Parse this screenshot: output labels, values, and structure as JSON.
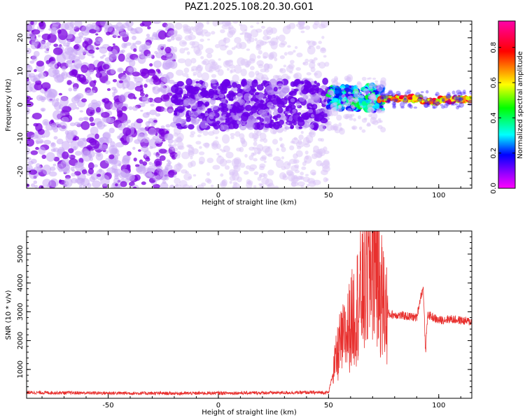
{
  "figure_title": "PAZ1.2025.108.20.30.G01",
  "colors": {
    "spectrogram_purple": "#7b00e0",
    "snr_line": "#e8302e",
    "axis": "#000000",
    "colormap_stops": [
      "#ff00ff",
      "#ff0000",
      "#ffff00",
      "#00ff00",
      "#00ffff",
      "#0000ff",
      "#ff00ff"
    ]
  },
  "chart_data": [
    {
      "type": "heatmap",
      "title": "",
      "xlabel": "Height of straight line (km)",
      "ylabel": "Frequency (Hz)",
      "xlim": [
        -87,
        115
      ],
      "ylim": [
        -25,
        25
      ],
      "x_ticks": [
        "-50",
        "0",
        "50",
        "100"
      ],
      "y_ticks": [
        "20",
        "10",
        "0",
        "-10",
        "-20"
      ],
      "colorbar": {
        "label": "Normalized spectral amplitude",
        "range": [
          0,
          0.95
        ],
        "ticks": [
          "0.0",
          "0.2",
          "0.4",
          "0.6",
          "0.8"
        ]
      },
      "regions": [
        {
          "x": [
            -87,
            -20
          ],
          "description": "noise",
          "amplitude": [
            0.05,
            0.15
          ]
        },
        {
          "x": [
            -20,
            50
          ],
          "description": "band",
          "freq": [
            -8,
            8
          ],
          "amplitude": [
            0.1,
            0.2
          ]
        },
        {
          "x": [
            50,
            75
          ],
          "description": "signal",
          "freq": [
            0,
            6
          ],
          "amplitude": [
            0.2,
            0.4
          ]
        },
        {
          "x": [
            75,
            115
          ],
          "description": "strong signal",
          "freq": [
            0,
            2
          ],
          "amplitude": [
            0.7,
            0.9
          ]
        }
      ]
    },
    {
      "type": "line",
      "title": "",
      "xlabel": "Height of straight line (km)",
      "ylabel": "SNR (10 * v/v)",
      "xlim": [
        -87,
        115
      ],
      "ylim": [
        0,
        5800
      ],
      "x_ticks": [
        "-50",
        "0",
        "50",
        "100"
      ],
      "y_ticks": [
        "1000",
        "2000",
        "3000",
        "4000",
        "5000"
      ],
      "series": [
        {
          "x": [
            -87,
            -50,
            -20,
            0,
            20,
            40,
            50,
            53,
            55,
            58,
            60,
            62,
            64,
            66,
            68,
            70,
            71,
            72,
            74,
            76,
            78,
            80,
            85,
            90,
            92,
            93,
            94,
            95,
            100,
            105,
            110,
            115
          ],
          "y": [
            200,
            180,
            170,
            180,
            190,
            200,
            200,
            1200,
            1800,
            2200,
            2600,
            3000,
            3500,
            3800,
            4200,
            5000,
            5700,
            4500,
            3600,
            3000,
            2900,
            2900,
            2850,
            2800,
            3600,
            3800,
            1600,
            2900,
            2700,
            2750,
            2700,
            2650
          ]
        }
      ]
    }
  ]
}
